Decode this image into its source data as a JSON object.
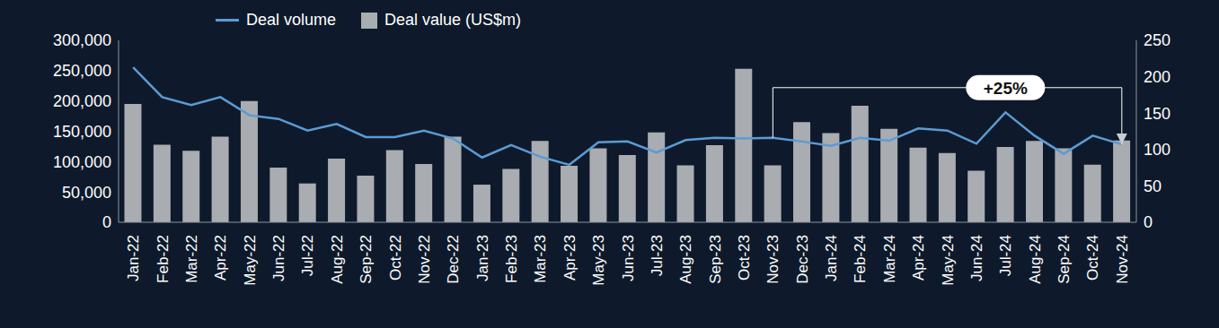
{
  "chart_data": {
    "type": "bar",
    "categories": [
      "Jan-22",
      "Feb-22",
      "Mar-22",
      "Apr-22",
      "May-22",
      "Jun-22",
      "Jul-22",
      "Aug-22",
      "Sep-22",
      "Oct-22",
      "Nov-22",
      "Dec-22",
      "Jan-23",
      "Feb-23",
      "Mar-23",
      "Apr-23",
      "May-23",
      "Jun-23",
      "Jul-23",
      "Aug-23",
      "Sep-23",
      "Oct-23",
      "Nov-23",
      "Dec-23",
      "Jan-24",
      "Feb-24",
      "Mar-24",
      "Apr-24",
      "May-24",
      "Jun-24",
      "Jul-24",
      "Aug-24",
      "Sep-24",
      "Oct-24",
      "Nov-24"
    ],
    "series": [
      {
        "name": "Deal volume",
        "type": "line",
        "color": "#5b9bd5",
        "axis": "y2",
        "values": [
          213,
          172,
          161,
          172,
          147,
          142,
          126,
          135,
          117,
          117,
          126,
          115,
          89,
          106,
          90,
          79,
          110,
          111,
          96,
          113,
          116,
          115,
          116,
          111,
          105,
          116,
          112,
          129,
          126,
          108,
          151,
          119,
          94,
          119,
          107
        ]
      },
      {
        "name": "Deal value (US$m)",
        "type": "bar",
        "color": "#a9acb0",
        "values": [
          195000,
          128000,
          118000,
          141000,
          200000,
          90000,
          64000,
          105000,
          77000,
          119000,
          96000,
          141000,
          62000,
          88000,
          134000,
          93000,
          122000,
          111000,
          148000,
          94000,
          127000,
          253000,
          94000,
          165000,
          147000,
          192000,
          154000,
          123000,
          114000,
          85000,
          124000,
          134000,
          122000,
          95000,
          135000
        ]
      }
    ],
    "ylim": [
      0,
      300000
    ],
    "yticks": [
      0,
      {
        "value": 50000,
        "label": "50,000"
      },
      {
        "value": 100000,
        "label": "100,000"
      },
      {
        "value": 150000,
        "label": "150,000"
      },
      {
        "value": 200000,
        "label": "200,000"
      },
      {
        "value": 250000,
        "label": "250,000"
      },
      {
        "value": 300000,
        "label": "300,000"
      }
    ],
    "y2lim": [
      0,
      250
    ],
    "y2ticks": [
      0,
      50,
      100,
      150,
      200,
      250
    ],
    "grid": false,
    "annotations": [
      {
        "text": "+25%",
        "from": "Nov-23",
        "to": "Nov-24"
      }
    ]
  }
}
